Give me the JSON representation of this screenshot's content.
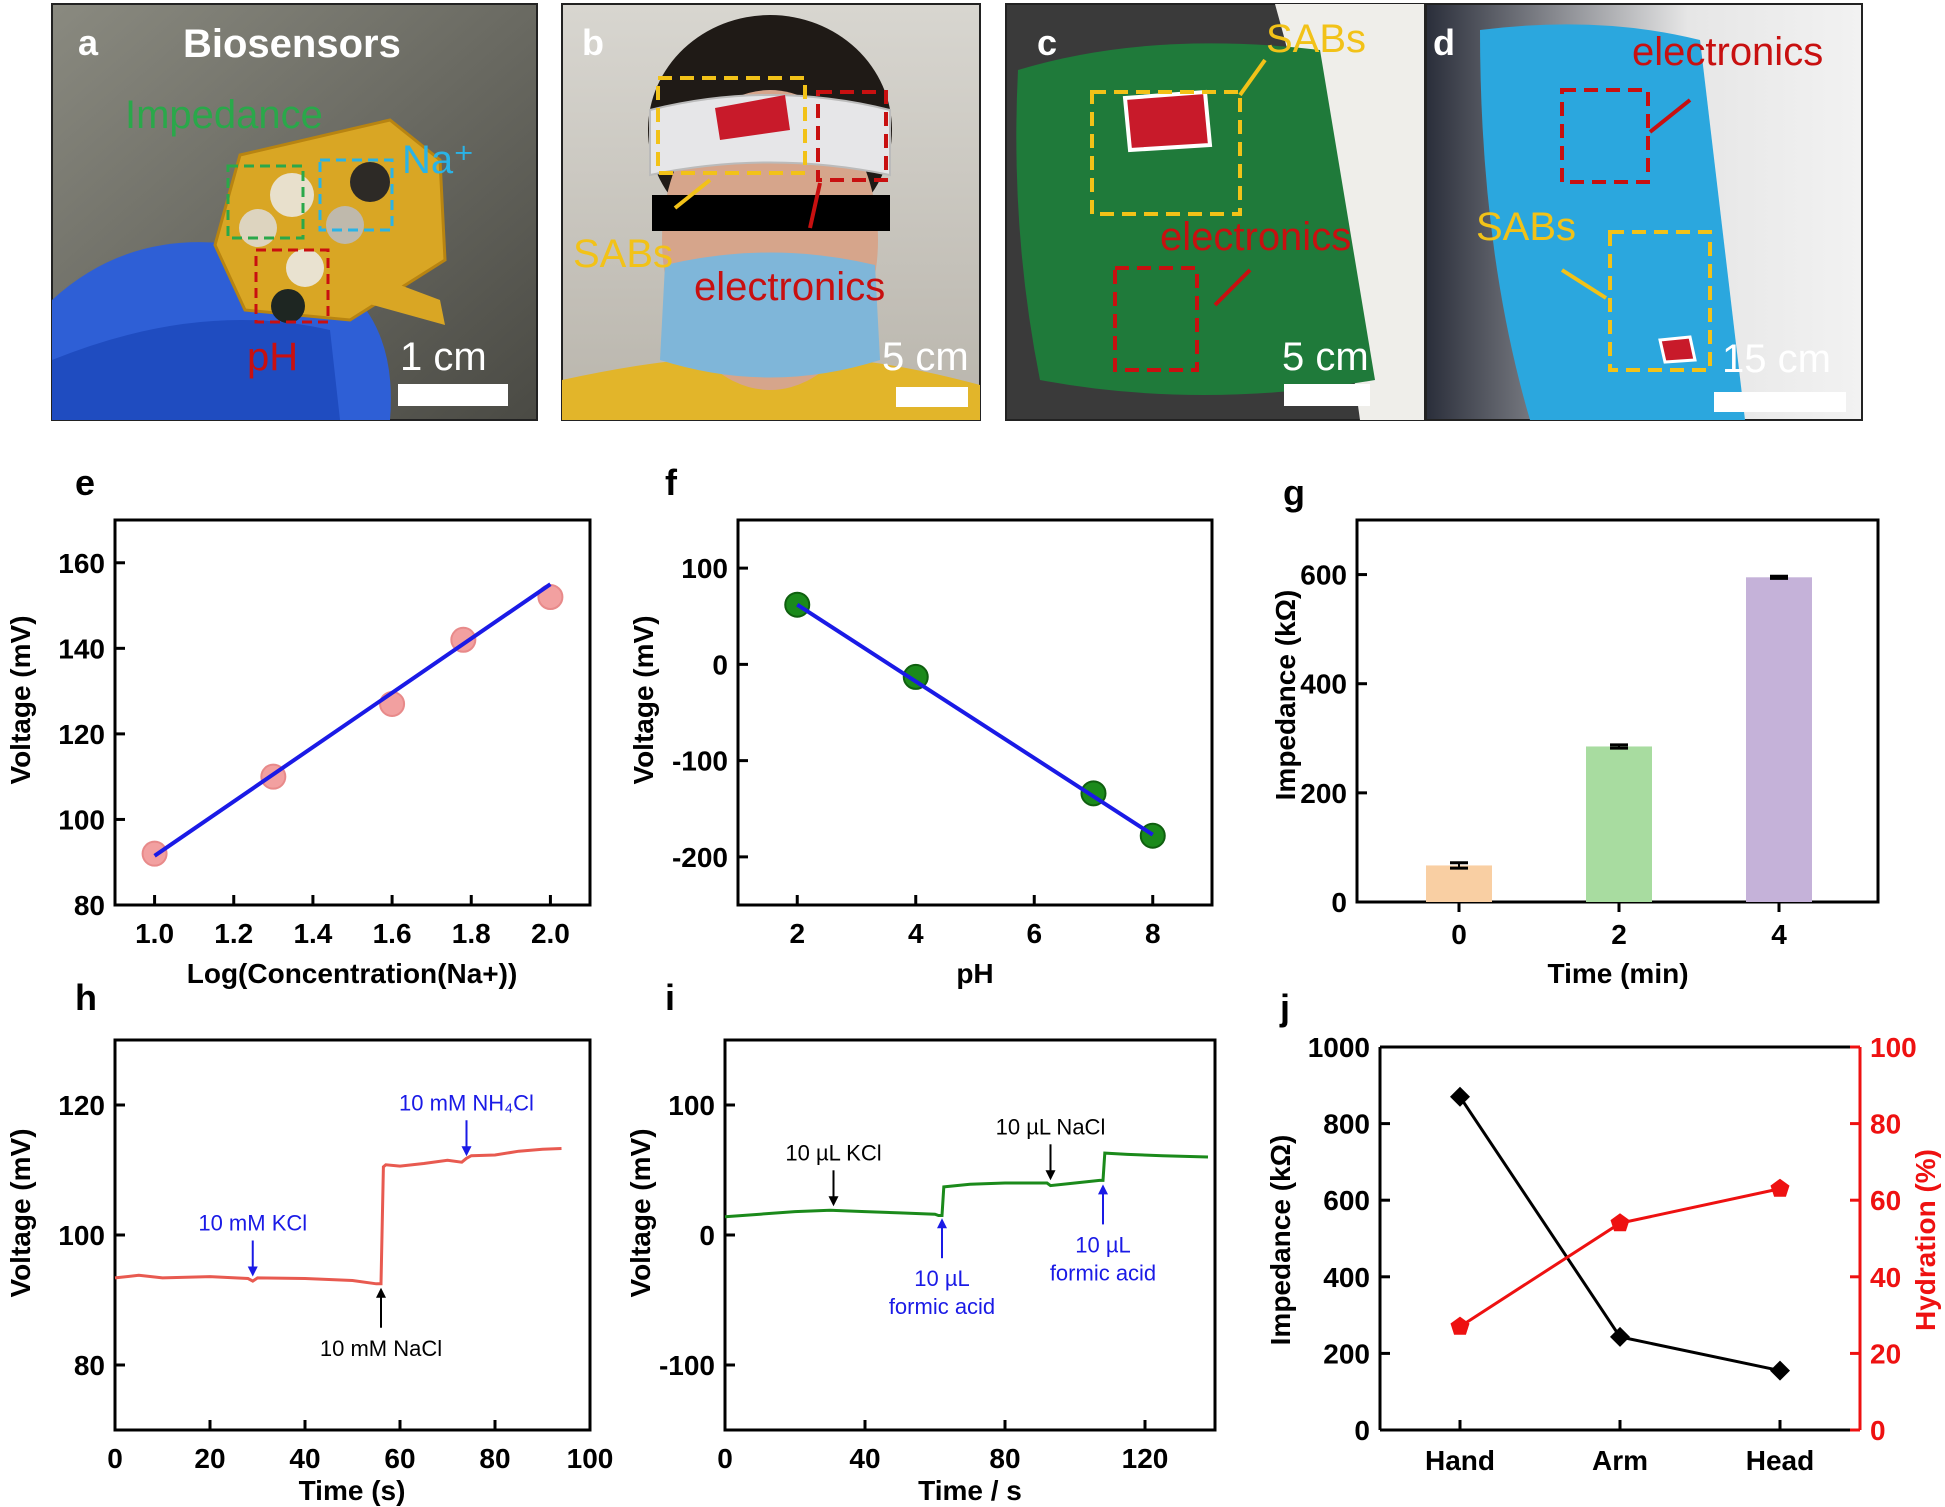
{
  "photos": [
    {
      "label": "a",
      "title": "Biosensors",
      "annotations": {
        "impedance": "Impedance",
        "na": "Na⁺",
        "ph": "pH"
      },
      "scale": "1 cm"
    },
    {
      "label": "b",
      "annotations": {
        "sabs": "SABs",
        "electronics": "electronics"
      },
      "scale": "5 cm"
    },
    {
      "label": "c",
      "annotations": {
        "sabs": "SABs",
        "electronics": "electronics"
      },
      "scale": "5 cm"
    },
    {
      "label": "d",
      "annotations": {
        "sabs": "SABs",
        "electronics": "electronics"
      },
      "scale": "15 cm"
    }
  ],
  "chart_data": [
    {
      "panel": "e",
      "type": "scatter",
      "xlabel": "Log(Concentration(Na+))",
      "ylabel": "Voltage (mV)",
      "xlim": [
        0.9,
        2.1
      ],
      "ylim": [
        80,
        170
      ],
      "xticks": [
        "1.0",
        "1.2",
        "1.4",
        "1.6",
        "1.8",
        "2.0"
      ],
      "yticks": [
        "80",
        "100",
        "120",
        "140",
        "160"
      ],
      "x": [
        1.0,
        1.3,
        1.6,
        1.78,
        2.0
      ],
      "y": [
        92,
        110,
        127,
        142,
        152
      ],
      "fit": {
        "x": [
          1.0,
          2.0
        ],
        "y": [
          91.5,
          155
        ]
      },
      "marker_color": "#f2a0a0",
      "line_color": "#1a1ae6"
    },
    {
      "panel": "f",
      "type": "scatter",
      "xlabel": "pH",
      "ylabel": "Voltage (mV)",
      "xlim": [
        1,
        9
      ],
      "ylim": [
        -250,
        150
      ],
      "xticks": [
        "2",
        "4",
        "6",
        "8"
      ],
      "yticks": [
        "-200",
        "-100",
        "0",
        "100"
      ],
      "x": [
        2,
        4,
        7,
        8
      ],
      "y": [
        62,
        -13,
        -134,
        -178
      ],
      "fit": {
        "x": [
          2,
          8
        ],
        "y": [
          62,
          -177
        ]
      },
      "marker_color": "#1b8a1b",
      "line_color": "#1a1ae6"
    },
    {
      "panel": "g",
      "type": "bar",
      "xlabel": "Time (min)",
      "ylabel": "Impedance (kΩ)",
      "categories": [
        "0",
        "2",
        "4"
      ],
      "values": [
        67,
        285,
        595
      ],
      "errors": [
        5,
        3,
        2
      ],
      "colors": [
        "#f9cfa3",
        "#a8dca0",
        "#c5b2d9"
      ],
      "ylim": [
        0,
        700
      ],
      "yticks": [
        "0",
        "200",
        "400",
        "600"
      ]
    },
    {
      "panel": "h",
      "type": "line",
      "xlabel": "Time (s)",
      "ylabel": "Voltage (mV)",
      "xlim": [
        0,
        100
      ],
      "ylim": [
        70,
        130
      ],
      "xticks": [
        "0",
        "20",
        "40",
        "60",
        "80",
        "100"
      ],
      "yticks": [
        "80",
        "100",
        "120"
      ],
      "x": [
        0,
        5,
        10,
        20,
        28,
        29,
        30,
        40,
        50,
        55,
        56,
        56.5,
        57,
        60,
        65,
        70,
        73,
        74,
        75,
        80,
        85,
        90,
        94
      ],
      "y": [
        93.4,
        93.8,
        93.4,
        93.6,
        93.3,
        92.9,
        93.4,
        93.3,
        93.0,
        92.5,
        92.5,
        110.5,
        110.8,
        110.6,
        111.0,
        111.5,
        111.2,
        111.8,
        112.2,
        112.3,
        112.9,
        113.2,
        113.3
      ],
      "line_color": "#e85a50",
      "annotations": [
        {
          "text": "10 mM KCl",
          "x": 29,
          "y": 93,
          "position": "above",
          "color": "#1a1ae6"
        },
        {
          "text": "10 mM NaCl",
          "x": 56,
          "y": 92.5,
          "position": "below",
          "color": "#000000"
        },
        {
          "text": "10 mM NH₄Cl",
          "x": 74,
          "y": 111.5,
          "position": "above",
          "color": "#1a1ae6"
        }
      ]
    },
    {
      "panel": "i",
      "type": "line",
      "xlabel": "Time / s",
      "ylabel": "Voltage (mV)",
      "xlim": [
        0,
        140
      ],
      "ylim": [
        -150,
        150
      ],
      "xticks": [
        "0",
        "40",
        "80",
        "120"
      ],
      "yticks": [
        "-100",
        "0",
        "100"
      ],
      "x": [
        0,
        10,
        20,
        30,
        40,
        50,
        60,
        61,
        62,
        62.5,
        70,
        80,
        92,
        93,
        100,
        107,
        108,
        108.5,
        115,
        125,
        138
      ],
      "y": [
        14,
        16,
        18,
        19,
        18,
        17,
        16,
        15,
        15,
        37,
        39,
        40,
        40,
        38,
        40,
        42,
        42,
        63,
        62,
        61,
        60
      ],
      "line_color": "#1b8a1b",
      "annotations": [
        {
          "text": "10 µL KCl",
          "x": 31,
          "y": 19,
          "position": "above",
          "color": "#000000"
        },
        {
          "text": "10 µL NaCl",
          "x": 93,
          "y": 39,
          "position": "above",
          "color": "#000000"
        },
        {
          "text": "10 µL|formic acid",
          "x": 62,
          "y": 16,
          "position": "below",
          "color": "#1a1ae6"
        },
        {
          "text": "10 µL|formic acid",
          "x": 108,
          "y": 42,
          "position": "below",
          "color": "#1a1ae6"
        }
      ]
    },
    {
      "panel": "j",
      "type": "line",
      "xlabel": "",
      "ylabel": "Impedance (kΩ)",
      "ylabel_right": "Hydration (%)",
      "categories": [
        "Hand",
        "Arm",
        "Head"
      ],
      "ylim": [
        0,
        1000
      ],
      "ylim_right": [
        0,
        100
      ],
      "yticks": [
        "0",
        "200",
        "400",
        "600",
        "800",
        "1000"
      ],
      "yticks_right": [
        "0",
        "20",
        "40",
        "60",
        "80",
        "100"
      ],
      "series": [
        {
          "name": "",
          "axis": "left",
          "values": [
            870,
            243,
            155
          ],
          "color": "#000000"
        },
        {
          "name": "",
          "axis": "right",
          "values": [
            27,
            54,
            63
          ],
          "color": "#ee1111"
        }
      ]
    }
  ]
}
